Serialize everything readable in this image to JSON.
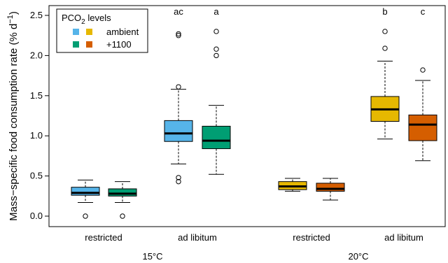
{
  "chart_data": {
    "type": "boxplot",
    "ylabel_main": "Mass−specific food consumption rate (% d",
    "ylabel_exp": "−1",
    "ylabel_close": ")",
    "ylim": [
      0,
      2.5
    ],
    "yticks": [
      0.0,
      0.5,
      1.0,
      1.5,
      2.0,
      2.5
    ],
    "ytick_labels": [
      "0.0",
      "0.5",
      "1.0",
      "1.5",
      "2.0",
      "2.5"
    ],
    "legend": {
      "title_main": "PCO",
      "title_sub": "2",
      "title_rest": " levels",
      "placement": "top-left",
      "entries": [
        {
          "label": "ambient",
          "colors": [
            "#56B4E9",
            "#E6B800"
          ]
        },
        {
          "label": "+1100",
          "colors": [
            "#009E73",
            "#D55E00"
          ]
        }
      ]
    },
    "categories": [
      "restricted",
      "ad libitum",
      "restricted",
      "ad libitum"
    ],
    "groups": [
      "15°C",
      "20°C"
    ],
    "boxes": [
      {
        "temp": "15°C",
        "feeding": "restricted",
        "pco2": "ambient",
        "color": "#56B4E9",
        "min": 0.17,
        "q1": 0.26,
        "median": 0.29,
        "q3": 0.36,
        "max": 0.45,
        "outliers": [
          0.0
        ],
        "sig": ""
      },
      {
        "temp": "15°C",
        "feeding": "restricted",
        "pco2": "+1100",
        "color": "#009E73",
        "min": 0.17,
        "q1": 0.25,
        "median": 0.28,
        "q3": 0.34,
        "max": 0.43,
        "outliers": [
          0.0
        ],
        "sig": ""
      },
      {
        "temp": "15°C",
        "feeding": "ad libitum",
        "pco2": "ambient",
        "color": "#56B4E9",
        "min": 0.65,
        "q1": 0.93,
        "median": 1.03,
        "q3": 1.19,
        "max": 1.58,
        "outliers": [
          0.43,
          0.48,
          1.61,
          2.25,
          2.27
        ],
        "sig": "ac"
      },
      {
        "temp": "15°C",
        "feeding": "ad libitum",
        "pco2": "+1100",
        "color": "#009E73",
        "min": 0.52,
        "q1": 0.84,
        "median": 0.94,
        "q3": 1.12,
        "max": 1.38,
        "outliers": [
          2.0,
          2.08,
          2.3
        ],
        "sig": "a"
      },
      {
        "temp": "20°C",
        "feeding": "restricted",
        "pco2": "ambient",
        "color": "#E6B800",
        "min": 0.31,
        "q1": 0.33,
        "median": 0.37,
        "q3": 0.43,
        "max": 0.47,
        "outliers": [],
        "sig": ""
      },
      {
        "temp": "20°C",
        "feeding": "restricted",
        "pco2": "+1100",
        "color": "#D55E00",
        "min": 0.2,
        "q1": 0.31,
        "median": 0.34,
        "q3": 0.41,
        "max": 0.47,
        "outliers": [],
        "sig": ""
      },
      {
        "temp": "20°C",
        "feeding": "ad libitum",
        "pco2": "ambient",
        "color": "#E6B800",
        "min": 0.96,
        "q1": 1.18,
        "median": 1.33,
        "q3": 1.49,
        "max": 1.93,
        "outliers": [
          2.09,
          2.3
        ],
        "sig": "b"
      },
      {
        "temp": "20°C",
        "feeding": "ad libitum",
        "pco2": "+1100",
        "color": "#D55E00",
        "min": 0.69,
        "q1": 0.94,
        "median": 1.14,
        "q3": 1.26,
        "max": 1.69,
        "outliers": [
          1.82
        ],
        "sig": "c"
      }
    ]
  }
}
